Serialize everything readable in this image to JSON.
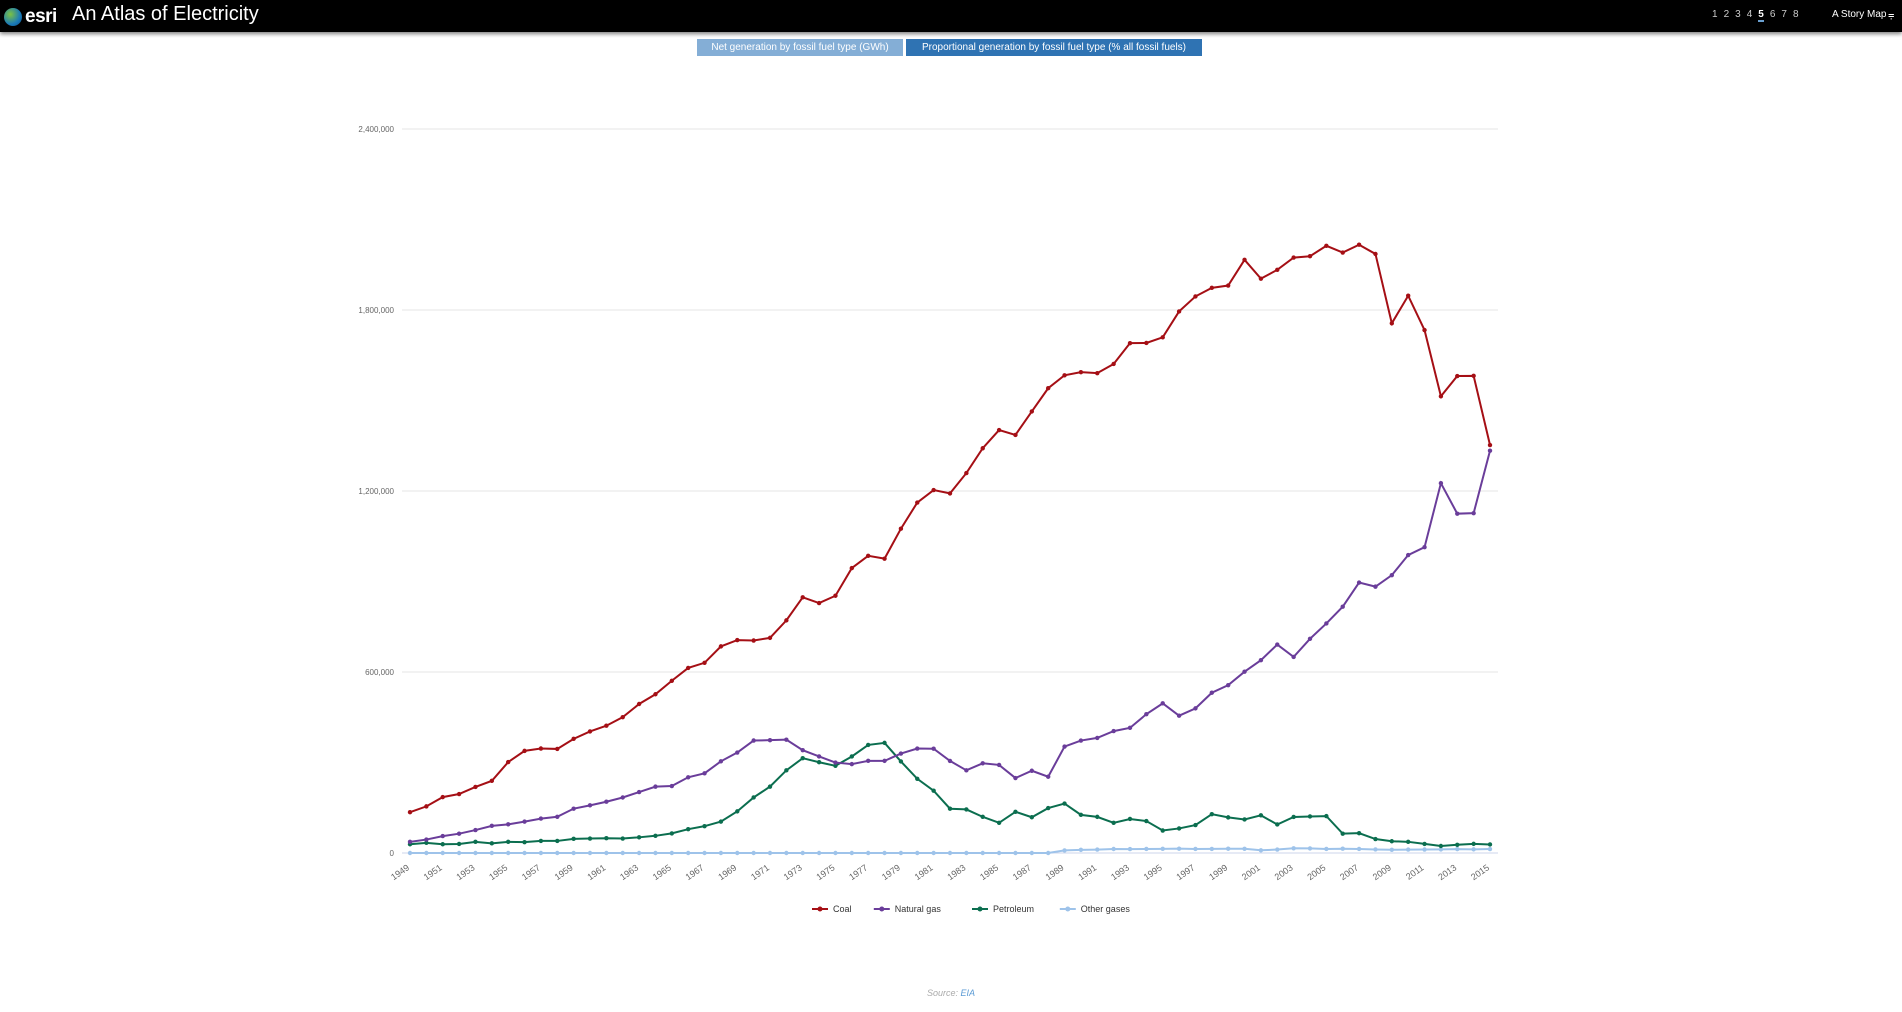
{
  "header": {
    "brand": "esri",
    "title": "An Atlas of Electricity",
    "pages": [
      "1",
      "2",
      "3",
      "4",
      "5",
      "6",
      "7",
      "8"
    ],
    "active_page": "5",
    "story_label": "A Story Map",
    "share_icon": "share-icon"
  },
  "tabs": [
    {
      "label": "Net generation by fossil fuel type (GWh)",
      "active": false
    },
    {
      "label": "Proportional generation by fossil fuel type (% all fossil fuels)",
      "active": true
    }
  ],
  "source": {
    "prefix": "Source:",
    "link": "EIA"
  },
  "chart_data": {
    "type": "line",
    "title": "Net generation by fossil fuel type (GWh)",
    "xlabel": "",
    "ylabel": "",
    "ylim": [
      0,
      2400000
    ],
    "yticks": [
      "0",
      "600,000",
      "1,200,000",
      "1,800,000",
      "2,400,000"
    ],
    "ytick_values": [
      0,
      600000,
      1200000,
      1800000,
      2400000
    ],
    "x": [
      1949,
      1950,
      1951,
      1952,
      1953,
      1954,
      1955,
      1956,
      1957,
      1958,
      1959,
      1960,
      1961,
      1962,
      1963,
      1964,
      1965,
      1966,
      1967,
      1968,
      1969,
      1970,
      1971,
      1972,
      1973,
      1974,
      1975,
      1976,
      1977,
      1978,
      1979,
      1980,
      1981,
      1982,
      1983,
      1984,
      1985,
      1986,
      1987,
      1988,
      1989,
      1990,
      1991,
      1992,
      1993,
      1994,
      1995,
      1996,
      1997,
      1998,
      1999,
      2000,
      2001,
      2002,
      2003,
      2004,
      2005,
      2006,
      2007,
      2008,
      2009,
      2010,
      2011,
      2012,
      2013,
      2014,
      2015
    ],
    "xtick_labels_every": 2,
    "grid": true,
    "legend_position": "bottom-center",
    "series": [
      {
        "name": "Coal",
        "color": "#a50f15",
        "values": [
          135451,
          154520,
          185204,
          195436,
          218846,
          239146,
          301363,
          338503,
          346386,
          344971,
          378424,
          403067,
          421871,
          450249,
          493927,
          526230,
          570926,
          613475,
          630483,
          684905,
          705701,
          704394,
          713103,
          771130,
          847651,
          828433,
          852786,
          944391,
          985219,
          975742,
          1075037,
          1161562,
          1203203,
          1192004,
          1259424,
          1341681,
          1402128,
          1385831,
          1463781,
          1540653,
          1583625,
          1594011,
          1590623,
          1621206,
          1690070,
          1690694,
          1709426,
          1795196,
          1845016,
          1873516,
          1881087,
          1966265,
          1903956,
          1933130,
          1973737,
          1978301,
          2012873,
          1990511,
          2016456,
          1985801,
          1755904,
          1847290,
          1733430,
          1514043,
          1581115,
          1581710,
          1352398
        ]
      },
      {
        "name": "Natural gas",
        "color": "#6a3d9a",
        "values": [
          36967,
          44559,
          56000,
          64000,
          76000,
          90000,
          95000,
          104000,
          114000,
          120000,
          147000,
          158000,
          170000,
          184000,
          202000,
          220000,
          222000,
          251000,
          264000,
          304000,
          333000,
          372890,
          374000,
          375723,
          340858,
          320065,
          299778,
          294624,
          305505,
          305391,
          329485,
          346240,
          345777,
          305260,
          274098,
          297394,
          291946,
          248508,
          272621,
          252801,
          352777,
          372765,
          381553,
          404074,
          414927,
          460219,
          496058,
          455056,
          479399,
          531257,
          556396,
          601038,
          639129,
          691006,
          649908,
          710100,
          760960,
          816441,
          896590,
          882981,
          920979,
          987697,
          1013689,
          1225894,
          1124836,
          1126609,
          1333482
        ]
      },
      {
        "name": "Petroleum",
        "color": "#0b6e4f",
        "values": [
          29000,
          33734,
          29000,
          30000,
          37000,
          32000,
          37000,
          36000,
          40000,
          40000,
          47000,
          48000,
          49000,
          48000,
          52000,
          57000,
          65000,
          79000,
          89000,
          104000,
          138000,
          184183,
          220000,
          274000,
          314343,
          300931,
          289095,
          319988,
          358250,
          365060,
          303525,
          245994,
          206421,
          146797,
          144499,
          119808,
          100202,
          136585,
          118491,
          148900,
          164000,
          126460,
          119749,
          100154,
          112788,
          105901,
          74554,
          81411,
          92555,
          128800,
          118061,
          111221,
          124880,
          94567,
          119406,
          121145,
          122225,
          64166,
          65739,
          46243,
          38937,
          37061,
          30182,
          23190,
          27164,
          30232,
          28249
        ]
      },
      {
        "name": "Other gases",
        "color": "#9ec3ea",
        "values": [
          0,
          0,
          0,
          0,
          0,
          0,
          0,
          0,
          0,
          0,
          0,
          0,
          0,
          0,
          0,
          0,
          0,
          0,
          0,
          0,
          0,
          0,
          0,
          0,
          0,
          0,
          0,
          0,
          0,
          0,
          0,
          0,
          0,
          0,
          0,
          0,
          0,
          0,
          0,
          0,
          8523,
          10383,
          11336,
          13270,
          12956,
          13319,
          13870,
          14356,
          13351,
          13492,
          14126,
          13955,
          9039,
          11463,
          15600,
          15252,
          13464,
          14177,
          13453,
          11707,
          10632,
          11313,
          11566,
          11898,
          12853,
          12022,
          13117
        ]
      }
    ]
  }
}
